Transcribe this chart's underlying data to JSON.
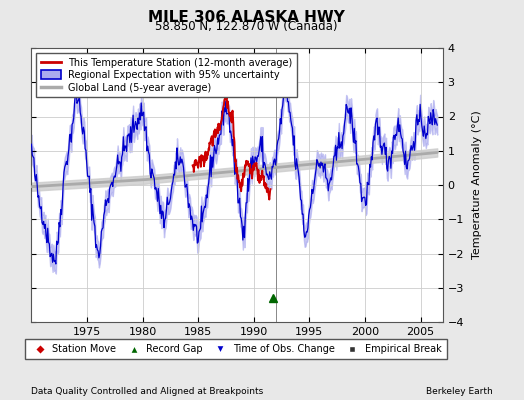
{
  "title": "MILE 306 ALASKA HWY",
  "subtitle": "58.850 N, 122.870 W (Canada)",
  "ylabel": "Temperature Anomaly (°C)",
  "footer_left": "Data Quality Controlled and Aligned at Breakpoints",
  "footer_right": "Berkeley Earth",
  "xlim": [
    1970.0,
    2007.0
  ],
  "ylim": [
    -4.0,
    4.0
  ],
  "xticks": [
    1975,
    1980,
    1985,
    1990,
    1995,
    2000,
    2005
  ],
  "yticks": [
    -4,
    -3,
    -2,
    -1,
    0,
    1,
    2,
    3,
    4
  ],
  "bg_color": "#e8e8e8",
  "plot_bg_color": "#ffffff",
  "grid_color": "#cccccc",
  "blue_line_color": "#0000cc",
  "blue_fill_color": "#aaaaee",
  "red_line_color": "#cc0000",
  "gray_line_color": "#aaaaaa",
  "legend_items": [
    "This Temperature Station (12-month average)",
    "Regional Expectation with 95% uncertainty",
    "Global Land (5-year average)"
  ],
  "marker_legend": [
    {
      "label": "Station Move",
      "color": "#cc0000",
      "marker": "D"
    },
    {
      "label": "Record Gap",
      "color": "#006600",
      "marker": "^"
    },
    {
      "label": "Time of Obs. Change",
      "color": "#0000cc",
      "marker": "v"
    },
    {
      "label": "Empirical Break",
      "color": "#333333",
      "marker": "s"
    }
  ],
  "record_gap_x": 1991.7,
  "record_gap_y": -3.3,
  "vline_x": 1992.0
}
